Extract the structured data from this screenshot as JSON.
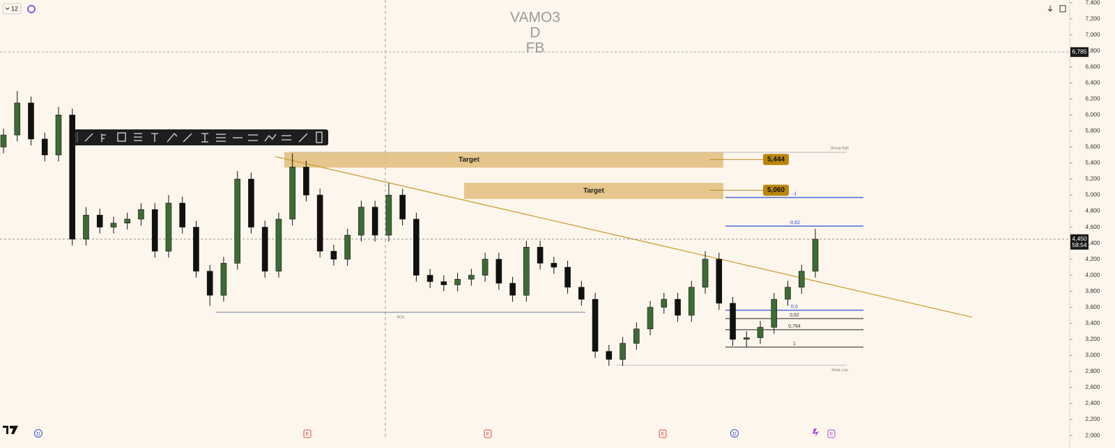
{
  "chart_data": {
    "type": "candlestick",
    "title_lines": [
      "VAMO3",
      "D",
      "FB"
    ],
    "interval": "12",
    "ylim": [
      2000,
      7400
    ],
    "yticks": [
      {
        "value": 7400,
        "label": "7,400"
      },
      {
        "value": 7200,
        "label": "7,200"
      },
      {
        "value": 7000,
        "label": "7,000"
      },
      {
        "value": 6800,
        "label": "6,800"
      },
      {
        "value": 6600,
        "label": "6,600"
      },
      {
        "value": 6400,
        "label": "6,400"
      },
      {
        "value": 6200,
        "label": "6,200"
      },
      {
        "value": 6000,
        "label": "6,000"
      },
      {
        "value": 5800,
        "label": "5,800"
      },
      {
        "value": 5600,
        "label": "5,600"
      },
      {
        "value": 5400,
        "label": "5,400"
      },
      {
        "value": 5200,
        "label": "5,200"
      },
      {
        "value": 5000,
        "label": "5,000"
      },
      {
        "value": 4800,
        "label": "4,800"
      },
      {
        "value": 4600,
        "label": "4,600"
      },
      {
        "value": 4400,
        "label": "4,400"
      },
      {
        "value": 4200,
        "label": "4,200"
      },
      {
        "value": 4000,
        "label": "4,000"
      },
      {
        "value": 3800,
        "label": "3,800"
      },
      {
        "value": 3600,
        "label": "3,600"
      },
      {
        "value": 3400,
        "label": "3,400"
      },
      {
        "value": 3200,
        "label": "3,200"
      },
      {
        "value": 3000,
        "label": "3,000"
      },
      {
        "value": 2800,
        "label": "2,800"
      },
      {
        "value": 2600,
        "label": "2,600"
      },
      {
        "value": 2400,
        "label": "2,400"
      },
      {
        "value": 2200,
        "label": "2,200"
      },
      {
        "value": 2000,
        "label": "2,000"
      }
    ],
    "colors": {
      "up": "#3d6b35",
      "down": "#111111",
      "zone": "#e2bd7b",
      "trendline": "#c9a033",
      "fib_blue": "#2b4fd6",
      "fib_dark": "#333333"
    },
    "ohlc": [
      [
        5600,
        5830,
        5520,
        5750
      ],
      [
        5750,
        6300,
        5670,
        6150
      ],
      [
        6150,
        6230,
        5620,
        5700
      ],
      [
        5700,
        5780,
        5420,
        5500
      ],
      [
        5500,
        6100,
        5420,
        6000
      ],
      [
        6000,
        6080,
        4370,
        4450
      ],
      [
        4450,
        4850,
        4370,
        4750
      ],
      [
        4750,
        4830,
        4520,
        4600
      ],
      [
        4600,
        4730,
        4520,
        4650
      ],
      [
        4650,
        4780,
        4570,
        4700
      ],
      [
        4700,
        4900,
        4620,
        4820
      ],
      [
        4820,
        4900,
        4220,
        4300
      ],
      [
        4300,
        5000,
        4220,
        4900
      ],
      [
        4900,
        4980,
        4520,
        4600
      ],
      [
        4600,
        4680,
        3970,
        4050
      ],
      [
        4050,
        4130,
        3620,
        3750
      ],
      [
        3750,
        4230,
        3670,
        4150
      ],
      [
        4150,
        5300,
        4070,
        5200
      ],
      [
        5200,
        5280,
        4520,
        4600
      ],
      [
        4600,
        4680,
        3970,
        4050
      ],
      [
        4050,
        4780,
        3970,
        4700
      ],
      [
        4700,
        5520,
        4620,
        5350
      ],
      [
        5350,
        5430,
        4920,
        5000
      ],
      [
        5000,
        5080,
        4220,
        4300
      ],
      [
        4300,
        4380,
        4120,
        4200
      ],
      [
        4200,
        4580,
        4120,
        4500
      ],
      [
        4500,
        4930,
        4420,
        4850
      ],
      [
        4850,
        4930,
        4420,
        4500
      ],
      [
        4500,
        5150,
        4420,
        5000
      ],
      [
        5000,
        5080,
        4620,
        4700
      ],
      [
        4700,
        4780,
        3920,
        4000
      ],
      [
        4000,
        4080,
        3840,
        3920
      ],
      [
        3920,
        4000,
        3800,
        3880
      ],
      [
        3880,
        4030,
        3800,
        3950
      ],
      [
        3950,
        4080,
        3870,
        4000
      ],
      [
        4000,
        4280,
        3920,
        4200
      ],
      [
        4200,
        4280,
        3820,
        3900
      ],
      [
        3900,
        3980,
        3670,
        3750
      ],
      [
        3750,
        4430,
        3670,
        4350
      ],
      [
        4350,
        4430,
        4070,
        4150
      ],
      [
        4150,
        4230,
        4020,
        4100
      ],
      [
        4100,
        4180,
        3770,
        3850
      ],
      [
        3850,
        3930,
        3620,
        3700
      ],
      [
        3700,
        3780,
        2970,
        3050
      ],
      [
        3050,
        3130,
        2870,
        2950
      ],
      [
        2950,
        3230,
        2870,
        3150
      ],
      [
        3150,
        3410,
        3070,
        3330
      ],
      [
        3330,
        3680,
        3250,
        3600
      ],
      [
        3600,
        3780,
        3520,
        3700
      ],
      [
        3700,
        3780,
        3420,
        3500
      ],
      [
        3500,
        3930,
        3420,
        3850
      ],
      [
        3850,
        4300,
        3770,
        4200
      ],
      [
        4200,
        4280,
        3570,
        3650
      ],
      [
        3650,
        3730,
        3120,
        3200
      ],
      [
        3200,
        3300,
        3100,
        3220
      ],
      [
        3220,
        3430,
        3140,
        3350
      ],
      [
        3350,
        3780,
        3270,
        3700
      ],
      [
        3700,
        3930,
        3620,
        3850
      ],
      [
        3850,
        4130,
        3770,
        4050
      ],
      [
        4050,
        4580,
        3970,
        4450
      ]
    ],
    "zones": [
      {
        "label": "Target",
        "top": 5534,
        "bottom": 5343,
        "tag": {
          "value": 5444,
          "label": "5,444"
        }
      },
      {
        "label": "Target",
        "top": 5152,
        "bottom": 4952,
        "tag": {
          "value": 5060,
          "label": "5,060"
        }
      }
    ],
    "fib": [
      {
        "value": 4970,
        "label": "-1"
      },
      {
        "value": 4613,
        "label": "-0,62"
      },
      {
        "value": 3563,
        "label": "0,5"
      },
      {
        "value": 3459,
        "label": "0,62"
      },
      {
        "value": 3320,
        "label": "0,764"
      },
      {
        "value": 3103,
        "label": "1"
      }
    ],
    "trendline": [
      5480,
      3476
    ],
    "levels": [
      {
        "value": 5534,
        "label": "Strong High"
      },
      {
        "value": 3537,
        "label": "BOS"
      },
      {
        "value": 2877,
        "label": "Weak Low"
      }
    ],
    "price_tags": [
      {
        "value": 6785,
        "label": "6,785"
      },
      {
        "value": 4450,
        "label": "4,450",
        "countdown": "58:54"
      }
    ],
    "event_markers": [
      "D",
      "E",
      "E",
      "E",
      "D",
      "E"
    ]
  }
}
